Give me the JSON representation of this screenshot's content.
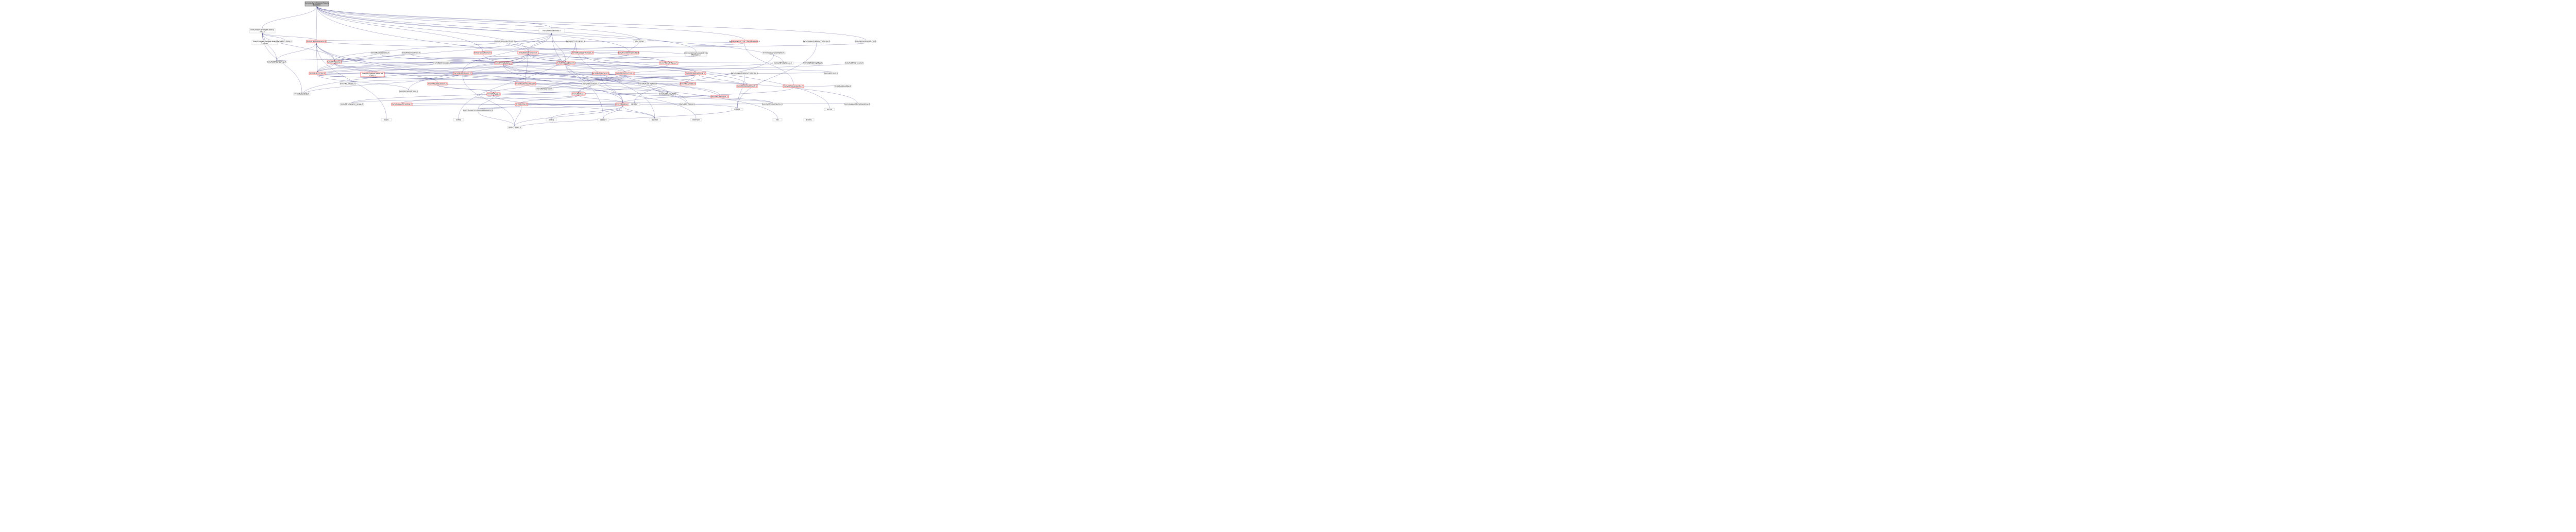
{
  "nodes": [
    {
      "id": "root",
      "label": "include/llvm/Passes/Passes\nBuilder.h",
      "kind": "root"
    },
    {
      "id": "analysis-targetlibinfo",
      "label": "llvm/Analysis/TargetLibrary\nInfo.h",
      "kind": "normal"
    },
    {
      "id": "ir-passbuilder",
      "label": "llvm/IR/PassBuilder.h",
      "kind": "normal"
    },
    {
      "id": "analysis-targetlibinfo-def",
      "label": "llvm/Analysis/TargetLibrary\nInfo.def",
      "kind": "normal"
    },
    {
      "id": "ir-triple",
      "label": "llvm/ADT/Triple.h",
      "kind": "normal"
    },
    {
      "id": "ir-callsite",
      "label": "llvm/IR/CallSite.h",
      "kind": "normal"
    },
    {
      "id": "ir-passmanager",
      "label": "llvm/IR/PassManager.h",
      "kind": "red"
    },
    {
      "id": "functional",
      "label": "functional",
      "kind": "normal"
    },
    {
      "id": "analysis-cgscc",
      "label": "llvm/Analysis/CGSCCPassManager.h",
      "kind": "red"
    },
    {
      "id": "ir-instructions",
      "label": "llvm/IR/Instructions.h",
      "kind": "red"
    },
    {
      "id": "transforms-scalar",
      "label": "llvm/Transforms/Scalar.h",
      "kind": "red"
    },
    {
      "id": "analysis-loopanalysis",
      "label": "llvm/Analysis/LoopAnalysis\nManager.h",
      "kind": "normal"
    },
    {
      "id": "densemap",
      "label": "llvm/ADT/DenseMap.h",
      "kind": "normal"
    },
    {
      "id": "ir-module",
      "label": "llvm/IR/Module.h",
      "kind": "red"
    },
    {
      "id": "ir-basicblock",
      "label": "llvm/IR/BasicBlock.h",
      "kind": "red"
    },
    {
      "id": "ir-function",
      "label": "llvm/IR/Function.h",
      "kind": "red"
    },
    {
      "id": "adt-optional",
      "label": "llvm/ADT/Optional.h",
      "kind": "normal"
    },
    {
      "id": "ir-instr",
      "label": "llvm/IR/Instruction.h",
      "kind": "red"
    },
    {
      "id": "ir-globalvalue",
      "label": "llvm/IR/GlobalValue.h",
      "kind": "red"
    },
    {
      "id": "support-attorder",
      "label": "llvm/Support/AtomicOrdering.h",
      "kind": "normal"
    },
    {
      "id": "ir-operator",
      "label": "llvm/IR/Operator.h",
      "kind": "normal"
    },
    {
      "id": "ir-constant",
      "label": "llvm/IR/Constant.h",
      "kind": "normal"
    },
    {
      "id": "adt-stringref",
      "label": "llvm/ADT/StringRef.h",
      "kind": "normal"
    },
    {
      "id": "ir-comdat",
      "label": "llvm/IR/Comdat.h",
      "kind": "red"
    },
    {
      "id": "ir-globalobject",
      "label": "llvm/IR/GlobalObject.h",
      "kind": "red"
    },
    {
      "id": "ir-valuehandle",
      "label": "llvm/IR/ValueHandle.h",
      "kind": "red"
    },
    {
      "id": "ir-attributes",
      "label": "llvm/IR/Attributes.h",
      "kind": "red"
    },
    {
      "id": "ir-argument",
      "label": "llvm/IR/Argument.h",
      "kind": "red"
    },
    {
      "id": "ir-symtab",
      "label": "llvm/IR/SymbolTableList\nTraits.h",
      "kind": "red"
    },
    {
      "id": "ir-datalayout",
      "label": "llvm/IR/DataLayout.h",
      "kind": "red"
    },
    {
      "id": "ir-type",
      "label": "llvm/IR/Type.h",
      "kind": "red"
    },
    {
      "id": "ir-user",
      "label": "llvm/IR/User.h",
      "kind": "red"
    },
    {
      "id": "ir-callingconv",
      "label": "llvm/IR/CallingConv.h",
      "kind": "normal"
    },
    {
      "id": "ir-debugloc",
      "label": "llvm/IR/DebugLoc.h",
      "kind": "red"
    },
    {
      "id": "ir-use",
      "label": "llvm/IR/Use.h",
      "kind": "red"
    },
    {
      "id": "ir-value",
      "label": "llvm/IR/Value.h",
      "kind": "red"
    },
    {
      "id": "adt-ilist",
      "label": "llvm/ADT/ilist.h",
      "kind": "normal"
    },
    {
      "id": "ir-valuemap",
      "label": "llvm/IR/ValueMap.h",
      "kind": "normal"
    },
    {
      "id": "cassert",
      "label": "cassert",
      "kind": "normal"
    },
    {
      "id": "cstddef",
      "label": "cstddef",
      "kind": "normal"
    },
    {
      "id": "cstdint",
      "label": "cstdint",
      "kind": "normal"
    },
    {
      "id": "iterator",
      "label": "iterator",
      "kind": "normal"
    },
    {
      "id": "string",
      "label": "string",
      "kind": "normal"
    },
    {
      "id": "utility",
      "label": "utility",
      "kind": "normal"
    },
    {
      "id": "support-casting",
      "label": "llvm/Support/Casting.h",
      "kind": "red"
    },
    {
      "id": "adt-iterator-range",
      "label": "llvm/ADT/iterator_range.h",
      "kind": "normal"
    },
    {
      "id": "support-cbinding",
      "label": "llvm/Support/CBindingWrapping.h",
      "kind": "normal"
    },
    {
      "id": "c-types",
      "label": "llvm-c/Types.h",
      "kind": "normal"
    },
    {
      "id": "adt-twine",
      "label": "llvm/ADT/Twine.h",
      "kind": "normal"
    },
    {
      "id": "adt-arrayref",
      "label": "llvm/ADT/ArrayRef.h",
      "kind": "normal"
    },
    {
      "id": "adt-stringmap",
      "label": "llvm/ADT/StringMap.h",
      "kind": "normal"
    },
    {
      "id": "support-errorhandling",
      "label": "llvm/Support/ErrorHandling.h",
      "kind": "normal"
    },
    {
      "id": "ir-metadata",
      "label": "llvm/IR/Metadata.h",
      "kind": "red"
    },
    {
      "id": "adt-smallvector",
      "label": "llvm/ADT/SmallVector.h",
      "kind": "normal"
    },
    {
      "id": "ir-intrinsics",
      "label": "llvm/IR/Intrinsics.h",
      "kind": "normal"
    },
    {
      "id": "ir-derivedtypes",
      "label": "llvm/IR/DerivedTypes.h",
      "kind": "red"
    },
    {
      "id": "ir-globalalias",
      "label": "llvm/IR/GlobalAlias.h",
      "kind": "normal"
    },
    {
      "id": "ir-globalifunc",
      "label": "llvm/IR/GlobalIFunc.h",
      "kind": "normal"
    },
    {
      "id": "ir-globalvariable",
      "label": "llvm/IR/GlobalVariable.h",
      "kind": "red"
    },
    {
      "id": "adt-ilist-node",
      "label": "llvm/ADT/ilist_node.h",
      "kind": "normal"
    },
    {
      "id": "adt-stlextras",
      "label": "llvm/ADT/STLExtras.h",
      "kind": "normal"
    },
    {
      "id": "ir-operandtraits",
      "label": "llvm/IR/OperandTraits.h",
      "kind": "normal"
    },
    {
      "id": "ir-instrtypes",
      "label": "llvm/IR/InstrTypes.h",
      "kind": "red"
    },
    {
      "id": "support-ordering",
      "label": "llvm/Support/AtomicOrdering.h",
      "kind": "normal"
    },
    {
      "id": "support-passplugin",
      "label": "llvm/Passes/PassPlugin.h",
      "kind": "normal"
    },
    {
      "id": "ir-linkage",
      "label": "llvm/IR/Linkage.h",
      "kind": "normal"
    },
    {
      "id": "support-error",
      "label": "llvm/Support/Error.h",
      "kind": "red"
    },
    {
      "id": "c-extern",
      "label": "llvm/Support/Compiler.h",
      "kind": "normal"
    },
    {
      "id": "vector",
      "label": "vector",
      "kind": "normal"
    },
    {
      "id": "memory",
      "label": "memory",
      "kind": "normal"
    },
    {
      "id": "tuple",
      "label": "tuple",
      "kind": "normal"
    },
    {
      "id": "list",
      "label": "list",
      "kind": "normal"
    },
    {
      "id": "atomic",
      "label": "atomic",
      "kind": "normal"
    }
  ]
}
